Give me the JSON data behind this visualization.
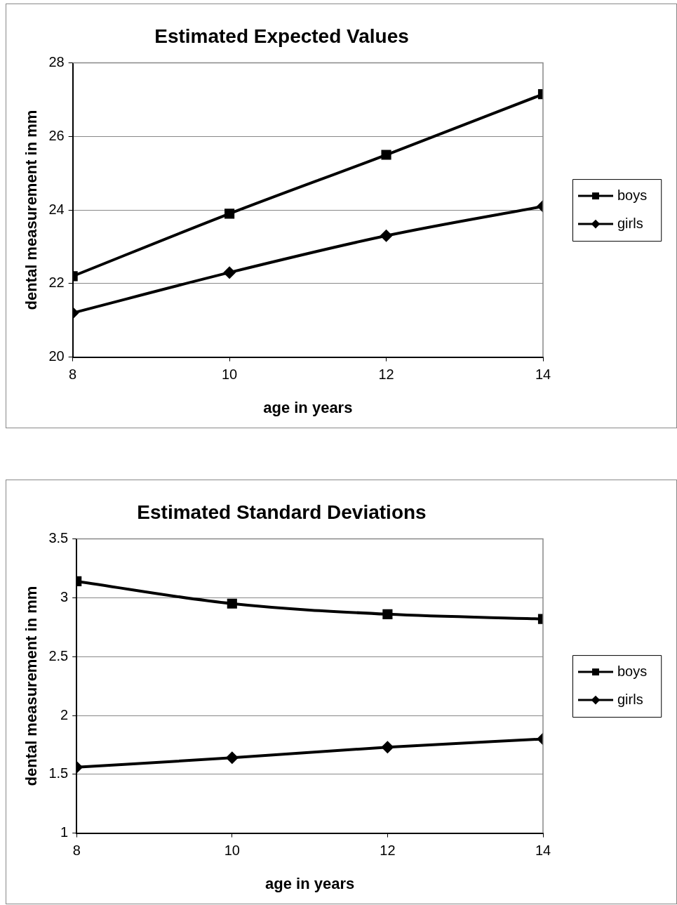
{
  "chart_data": [
    {
      "type": "line",
      "title": "Estimated Expected Values",
      "xlabel": "age in years",
      "ylabel": "dental measurement in mm",
      "x": [
        8,
        10,
        12,
        14
      ],
      "xlim": [
        8,
        14
      ],
      "xticks": [
        8,
        10,
        12,
        14
      ],
      "ylim": [
        20,
        28
      ],
      "yticks": [
        20,
        22,
        24,
        26,
        28
      ],
      "grid": "y",
      "legend": "right",
      "line_style": "solid",
      "series": [
        {
          "name": "boys",
          "color": "#000000",
          "marker": "square",
          "values": [
            22.2,
            23.9,
            25.5,
            27.15
          ]
        },
        {
          "name": "girls",
          "color": "#000000",
          "marker": "diamond",
          "values": [
            21.2,
            22.3,
            23.3,
            24.1
          ]
        }
      ]
    },
    {
      "type": "line",
      "title": "Estimated Standard Deviations",
      "xlabel": "age in years",
      "ylabel": "dental measurement in mm",
      "x": [
        8,
        10,
        12,
        14
      ],
      "xlim": [
        8,
        14
      ],
      "xticks": [
        8,
        10,
        12,
        14
      ],
      "ylim": [
        1,
        3.5
      ],
      "yticks": [
        1,
        1.5,
        2,
        2.5,
        3,
        3.5
      ],
      "grid": "y",
      "legend": "right",
      "line_style": "solid",
      "series": [
        {
          "name": "boys",
          "color": "#000000",
          "marker": "square",
          "values": [
            3.14,
            2.95,
            2.86,
            2.82
          ]
        },
        {
          "name": "girls",
          "color": "#000000",
          "marker": "diamond",
          "values": [
            1.56,
            1.64,
            1.73,
            1.8
          ]
        }
      ]
    }
  ]
}
